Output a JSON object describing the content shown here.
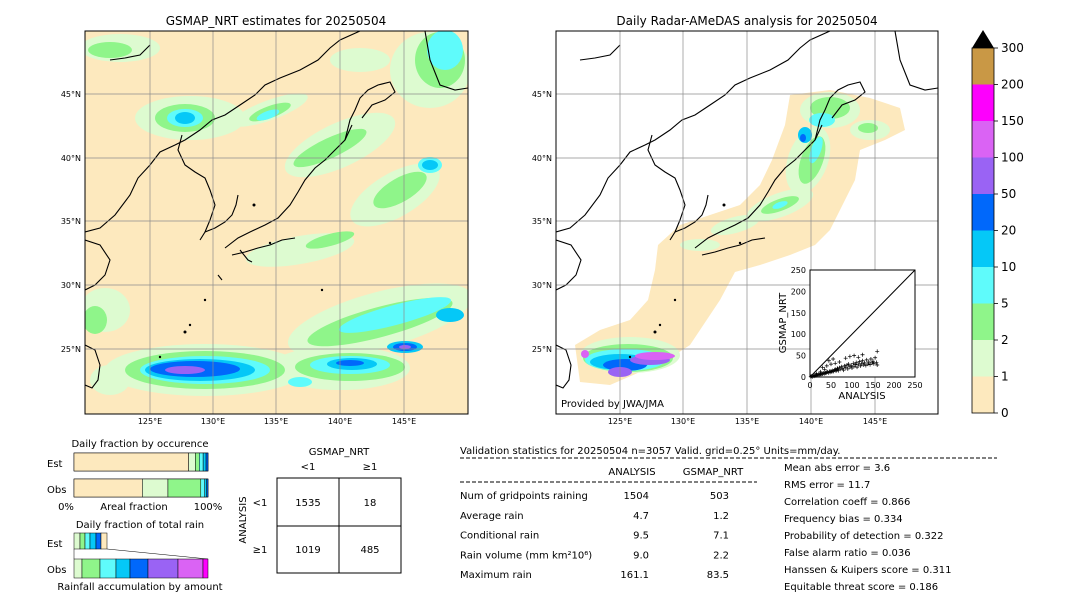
{
  "colors": {
    "bg_zero": "#fde9be",
    "c1": "#ddfbd0",
    "c2": "#8ff58a",
    "c5": "#5ffbfb",
    "c10": "#05c8f7",
    "c20": "#0068fb",
    "c50": "#9a63f4",
    "c100": "#da63f4",
    "c150": "#fd00fd",
    "c200": "#c99845",
    "land_line": "#000000",
    "grid": "#8c8c8c"
  },
  "map_left": {
    "title": "GSMAP_NRT estimates for 20250504",
    "lat_ticks": [
      "45°N",
      "40°N",
      "35°N",
      "30°N",
      "25°N"
    ],
    "lon_ticks": [
      "125°E",
      "130°E",
      "135°E",
      "140°E",
      "145°E"
    ]
  },
  "map_right": {
    "title": "Daily Radar-AMeDAS analysis for 20250504",
    "lat_ticks": [
      "45°N",
      "40°N",
      "35°N",
      "30°N",
      "25°N"
    ],
    "lon_ticks": [
      "125°E",
      "130°E",
      "135°E",
      "140°E",
      "145°E"
    ],
    "credit": "Provided by JWA/JMA"
  },
  "colorbar": {
    "labels": [
      "0",
      "1",
      "2",
      "5",
      "10",
      "20",
      "50",
      "100",
      "150",
      "200",
      "300"
    ],
    "extend": "max"
  },
  "chart_data": [
    {
      "type": "scatter",
      "xlabel": "ANALYSIS",
      "ylabel": "GSMAP_NRT",
      "xlim": [
        0,
        250
      ],
      "ylim": [
        0,
        250
      ],
      "x_ticks": [
        "0",
        "25",
        "50",
        "75",
        "100",
        "125",
        "150",
        "175",
        "200",
        "225",
        "250"
      ],
      "y_ticks": [
        "0",
        "50",
        "100",
        "150",
        "200",
        "250"
      ],
      "diagonal": true,
      "points": [
        [
          2,
          1
        ],
        [
          4,
          2
        ],
        [
          6,
          1
        ],
        [
          8,
          3
        ],
        [
          10,
          2
        ],
        [
          12,
          4
        ],
        [
          14,
          3
        ],
        [
          16,
          5
        ],
        [
          18,
          4
        ],
        [
          20,
          6
        ],
        [
          22,
          5
        ],
        [
          24,
          7
        ],
        [
          26,
          6
        ],
        [
          28,
          8
        ],
        [
          30,
          7
        ],
        [
          32,
          9
        ],
        [
          34,
          8
        ],
        [
          36,
          10
        ],
        [
          38,
          9
        ],
        [
          40,
          11
        ],
        [
          42,
          12
        ],
        [
          44,
          10
        ],
        [
          46,
          13
        ],
        [
          48,
          11
        ],
        [
          50,
          14
        ],
        [
          52,
          12
        ],
        [
          54,
          15
        ],
        [
          56,
          13
        ],
        [
          58,
          16
        ],
        [
          60,
          18
        ],
        [
          62,
          14
        ],
        [
          64,
          17
        ],
        [
          66,
          20
        ],
        [
          68,
          15
        ],
        [
          70,
          22
        ],
        [
          72,
          18
        ],
        [
          75,
          24
        ],
        [
          78,
          20
        ],
        [
          80,
          16
        ],
        [
          82,
          26
        ],
        [
          85,
          22
        ],
        [
          88,
          28
        ],
        [
          90,
          19
        ],
        [
          92,
          30
        ],
        [
          95,
          24
        ],
        [
          98,
          27
        ],
        [
          100,
          21
        ],
        [
          103,
          32
        ],
        [
          105,
          25
        ],
        [
          108,
          29
        ],
        [
          110,
          34
        ],
        [
          112,
          23
        ],
        [
          115,
          30
        ],
        [
          118,
          36
        ],
        [
          120,
          26
        ],
        [
          123,
          31
        ],
        [
          125,
          38
        ],
        [
          128,
          28
        ],
        [
          130,
          33
        ],
        [
          133,
          27
        ],
        [
          135,
          40
        ],
        [
          138,
          30
        ],
        [
          140,
          35
        ],
        [
          143,
          29
        ],
        [
          145,
          42
        ],
        [
          148,
          33
        ],
        [
          150,
          37
        ],
        [
          152,
          31
        ],
        [
          155,
          45
        ],
        [
          158,
          34
        ],
        [
          160,
          28
        ],
        [
          30,
          22
        ],
        [
          40,
          26
        ],
        [
          50,
          30
        ],
        [
          60,
          32
        ],
        [
          70,
          35
        ],
        [
          45,
          38
        ],
        [
          55,
          42
        ],
        [
          65,
          20
        ],
        [
          85,
          44
        ],
        [
          95,
          48
        ],
        [
          105,
          50
        ],
        [
          115,
          46
        ],
        [
          125,
          52
        ],
        [
          160,
          60
        ],
        [
          25,
          12
        ],
        [
          35,
          18
        ],
        [
          15,
          8
        ]
      ]
    },
    {
      "type": "bar",
      "title": "Daily fraction by occurence",
      "rows": [
        "Est",
        "Obs"
      ],
      "xlabel": "Areal fraction",
      "x_ticks": [
        "0%",
        "100%"
      ],
      "series": [
        {
          "values": [
            0.855,
            0.045
          ]
        },
        {
          "values": [
            0.51,
            0.19
          ]
        }
      ]
    },
    {
      "type": "bar",
      "title": "Daily fraction of total rain",
      "rows": [
        "Est",
        "Obs"
      ],
      "xlabel": "Rainfall accumulation by amount"
    },
    {
      "type": "table",
      "title": "GSMAP_NRT",
      "col_headers": [
        "<1",
        "≥1"
      ],
      "row_axis_label": "ANALYSIS",
      "row_headers": [
        "<1",
        "≥1"
      ],
      "cells": [
        [
          "1535",
          "18"
        ],
        [
          "1019",
          "485"
        ]
      ]
    },
    {
      "type": "table",
      "title": "Validation statistics for 20250504  n=3057 Valid. grid=0.25° Units=mm/day.",
      "columns": [
        "ANALYSIS",
        "GSMAP_NRT"
      ],
      "rows": [
        {
          "label": "Num of gridpoints raining",
          "analysis": "1504",
          "gsmap": "503"
        },
        {
          "label": "Average rain",
          "analysis": "4.7",
          "gsmap": "1.2"
        },
        {
          "label": "Conditional rain",
          "analysis": "9.5",
          "gsmap": "7.1"
        },
        {
          "label": "Rain volume (mm km²10⁶)",
          "analysis": "9.0",
          "gsmap": "2.2"
        },
        {
          "label": "Maximum rain",
          "analysis": "161.1",
          "gsmap": "83.5"
        }
      ],
      "scores": [
        "Mean abs error =    3.6",
        "RMS error =   11.7",
        "Correlation coeff =  0.866",
        "Frequency bias =  0.334",
        "Probability of detection =  0.322",
        "False alarm ratio =  0.036",
        "Hanssen & Kuipers score =  0.311",
        "Equitable threat score =  0.186"
      ]
    }
  ]
}
